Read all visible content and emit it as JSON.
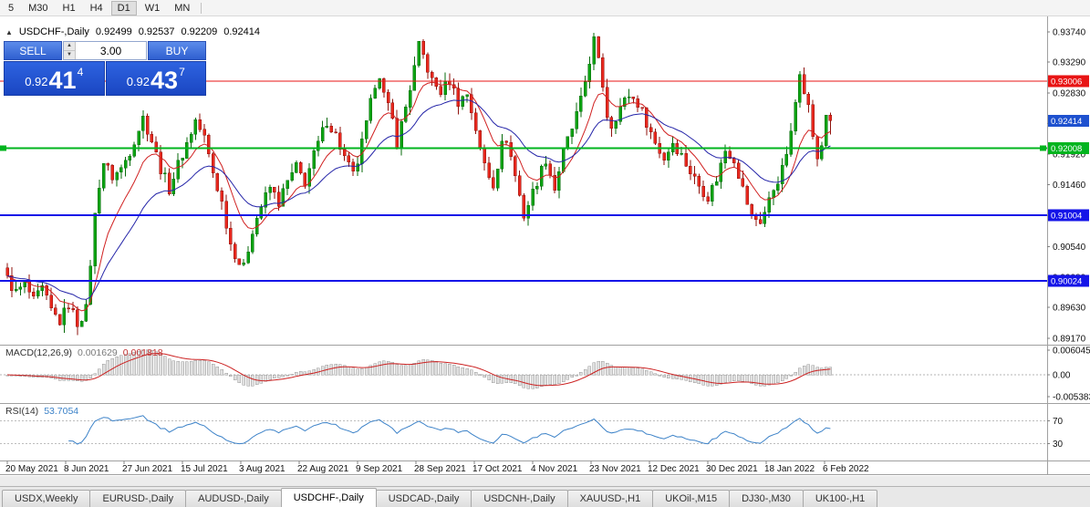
{
  "toolbar": {
    "timeframes": [
      "5",
      "M30",
      "H1",
      "H4",
      "D1",
      "W1",
      "MN"
    ],
    "active": "D1"
  },
  "icons": {
    "collapse_trade_panel": "▲",
    "spin_up": "▲",
    "spin_down": "▼"
  },
  "chart": {
    "symbol_label": "USDCHF-,Daily",
    "ohlc": {
      "open": "0.92499",
      "high": "0.92537",
      "low": "0.92209",
      "close": "0.92414"
    },
    "price_ticks": [
      "0.93740",
      "0.93290",
      "0.92830",
      "0.92370",
      "0.91920",
      "0.91460",
      "0.91000",
      "0.90540",
      "0.90080",
      "0.89630",
      "0.89170"
    ],
    "scale_tags": [
      {
        "text": "0.93006",
        "price": 0.93006,
        "color": "#e81414"
      },
      {
        "text": "0.92414",
        "price": 0.92414,
        "color": "#1e51cf"
      },
      {
        "text": "0.92008",
        "price": 0.92008,
        "color": "#00b41e"
      },
      {
        "text": "0.91004",
        "price": 0.91004,
        "color": "#1414e8"
      },
      {
        "text": "0.90024",
        "price": 0.90024,
        "color": "#1414e8"
      }
    ]
  },
  "trade": {
    "sell_label": "SELL",
    "buy_label": "BUY",
    "volume": "3.00",
    "bid_prefix": "0.92",
    "bid_big": "41",
    "bid_sup": "4",
    "ask_prefix": "0.92",
    "ask_big": "43",
    "ask_sup": "7"
  },
  "macd": {
    "label": "MACD(12,26,9)",
    "main_value": "0.001629",
    "signal_value": "0.001818",
    "scale": [
      {
        "text": "0.006045",
        "v": 0.006045
      },
      {
        "text": "0.00",
        "v": 0
      },
      {
        "text": "-0.005383",
        "v": -0.005383
      }
    ]
  },
  "rsi": {
    "label": "RSI(14)",
    "value": "53.7054",
    "levels": [
      {
        "text": "70",
        "v": 70
      },
      {
        "text": "30",
        "v": 30
      }
    ]
  },
  "dates": [
    "20 May 2021",
    "8 Jun 2021",
    "27 Jun 2021",
    "15 Jul 2021",
    "3 Aug 2021",
    "22 Aug 2021",
    "9 Sep 2021",
    "28 Sep 2021",
    "17 Oct 2021",
    "4 Nov 2021",
    "23 Nov 2021",
    "12 Dec 2021",
    "30 Dec 2021",
    "18 Jan 2022",
    "6 Feb 2022"
  ],
  "tabs": {
    "items": [
      "USDX,Weekly",
      "EURUSD-,Daily",
      "AUDUSD-,Daily",
      "USDCHF-,Daily",
      "USDCAD-,Daily",
      "USDCNH-,Daily",
      "XAUUSD-,H1",
      "UKOil-,M15",
      "DJ30-,M30",
      "UK100-,H1"
    ],
    "active_index": 3
  },
  "chart_data": {
    "type": "candlestick",
    "symbol": "USDCHF-",
    "timeframe": "Daily",
    "count": 189,
    "current": {
      "open": 0.92499,
      "high": 0.92537,
      "low": 0.92209,
      "close": 0.92414
    },
    "anchors": [
      [
        0,
        0.9005
      ],
      [
        2,
        0.8985
      ],
      [
        4,
        0.8998
      ],
      [
        6,
        0.8972
      ],
      [
        8,
        0.899
      ],
      [
        10,
        0.8958
      ],
      [
        12,
        0.8942
      ],
      [
        14,
        0.8968
      ],
      [
        16,
        0.894
      ],
      [
        18,
        0.896
      ],
      [
        19,
        0.903
      ],
      [
        20,
        0.91
      ],
      [
        21,
        0.9148
      ],
      [
        22,
        0.918
      ],
      [
        24,
        0.9158
      ],
      [
        26,
        0.917
      ],
      [
        28,
        0.9196
      ],
      [
        30,
        0.923
      ],
      [
        31,
        0.9246
      ],
      [
        33,
        0.9212
      ],
      [
        35,
        0.917
      ],
      [
        37,
        0.914
      ],
      [
        39,
        0.9176
      ],
      [
        41,
        0.9208
      ],
      [
        43,
        0.9242
      ],
      [
        45,
        0.9216
      ],
      [
        47,
        0.9164
      ],
      [
        49,
        0.912
      ],
      [
        51,
        0.9058
      ],
      [
        53,
        0.903
      ],
      [
        54,
        0.9022
      ],
      [
        56,
        0.908
      ],
      [
        58,
        0.9114
      ],
      [
        60,
        0.9142
      ],
      [
        62,
        0.912
      ],
      [
        64,
        0.915
      ],
      [
        66,
        0.9172
      ],
      [
        68,
        0.915
      ],
      [
        70,
        0.919
      ],
      [
        73,
        0.9242
      ],
      [
        75,
        0.922
      ],
      [
        77,
        0.9186
      ],
      [
        79,
        0.916
      ],
      [
        80,
        0.918
      ],
      [
        82,
        0.9235
      ],
      [
        84,
        0.9298
      ],
      [
        85,
        0.9312
      ],
      [
        86,
        0.928
      ],
      [
        88,
        0.9242
      ],
      [
        89,
        0.921
      ],
      [
        91,
        0.9262
      ],
      [
        93,
        0.932
      ],
      [
        94,
        0.9352
      ],
      [
        95,
        0.9338
      ],
      [
        97,
        0.93
      ],
      [
        99,
        0.9285
      ],
      [
        101,
        0.9302
      ],
      [
        103,
        0.927
      ],
      [
        105,
        0.9282
      ],
      [
        107,
        0.923
      ],
      [
        108,
        0.9195
      ],
      [
        110,
        0.916
      ],
      [
        111,
        0.9148
      ],
      [
        113,
        0.9205
      ],
      [
        114,
        0.9215
      ],
      [
        116,
        0.916
      ],
      [
        118,
        0.91
      ],
      [
        120,
        0.9135
      ],
      [
        122,
        0.9168
      ],
      [
        123,
        0.9185
      ],
      [
        125,
        0.914
      ],
      [
        127,
        0.9195
      ],
      [
        129,
        0.923
      ],
      [
        131,
        0.927
      ],
      [
        132,
        0.93
      ],
      [
        133,
        0.9332
      ],
      [
        134,
        0.9362
      ],
      [
        136,
        0.9295
      ],
      [
        137,
        0.925
      ],
      [
        138,
        0.9235
      ],
      [
        140,
        0.9262
      ],
      [
        142,
        0.928
      ],
      [
        144,
        0.9268
      ],
      [
        146,
        0.924
      ],
      [
        148,
        0.9208
      ],
      [
        150,
        0.9185
      ],
      [
        152,
        0.921
      ],
      [
        154,
        0.919
      ],
      [
        156,
        0.9165
      ],
      [
        158,
        0.9145
      ],
      [
        160,
        0.9128
      ],
      [
        162,
        0.9155
      ],
      [
        164,
        0.9198
      ],
      [
        166,
        0.9185
      ],
      [
        168,
        0.914
      ],
      [
        170,
        0.9098
      ],
      [
        172,
        0.9092
      ],
      [
        173,
        0.9105
      ],
      [
        175,
        0.914
      ],
      [
        177,
        0.9168
      ],
      [
        179,
        0.922
      ],
      [
        181,
        0.9318
      ],
      [
        183,
        0.9262
      ],
      [
        185,
        0.918
      ],
      [
        186,
        0.9205
      ],
      [
        187,
        0.923
      ],
      [
        188,
        0.92414
      ]
    ],
    "levels": [
      {
        "text": "0.93006",
        "price": 0.93006,
        "color": "#e81414",
        "width": 1
      },
      {
        "text": "0.92008",
        "price": 0.92008,
        "color": "#00b41e",
        "width": 2
      },
      {
        "text": "0.91004",
        "price": 0.91004,
        "color": "#1414e8",
        "width": 2
      },
      {
        "text": "0.90024",
        "price": 0.90024,
        "color": "#1414e8",
        "width": 2
      }
    ],
    "indicators": {
      "ma_fast_period": 10,
      "ma_slow_period": 24,
      "macd": {
        "fast": 12,
        "slow": 26,
        "signal": 9
      },
      "rsi": {
        "period": 14,
        "levels": [
          70,
          30
        ]
      }
    },
    "colors": {
      "up": "#0ca312",
      "up_border": "#076b0b",
      "down": "#e8281e",
      "down_border": "#8f130d",
      "ma_fast": "#d02020",
      "ma_slow": "#2424a8",
      "macd_hist_fill": "#e0e0e0",
      "macd_hist_border": "#9a9a9a",
      "macd_signal": "#cc2222",
      "rsi_line": "#3c82c8"
    },
    "y_axis": {
      "top_price": 0.9374,
      "bottom_price": 0.8917
    },
    "macd_axis": {
      "max": 0.006045,
      "min": -0.005383
    }
  }
}
